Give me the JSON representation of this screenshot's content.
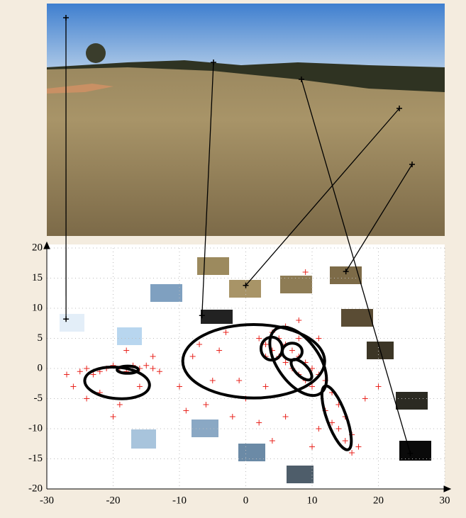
{
  "chart_data": {
    "type": "scatter",
    "xlim": [
      -30,
      30
    ],
    "ylim": [
      -20,
      20
    ],
    "xticks": [
      -30,
      -20,
      -10,
      0,
      10,
      20,
      30
    ],
    "yticks": [
      -20,
      -15,
      -10,
      -5,
      0,
      5,
      10,
      15,
      20
    ],
    "grid": true,
    "points": {
      "color": "#e8231d",
      "x": [
        -27,
        -25,
        -24,
        -23,
        -22,
        -21,
        -20,
        -19,
        -18,
        -17,
        -16,
        -15,
        -14,
        -13,
        -22,
        -19,
        -16,
        -24,
        -18,
        -14,
        -26,
        -20,
        -10,
        -8,
        -6,
        -4,
        -2,
        -5,
        -9,
        0,
        2,
        -3,
        -1,
        3,
        -7,
        2,
        3,
        4,
        5,
        6,
        7,
        8,
        9,
        10,
        11,
        5,
        6,
        7,
        8,
        9,
        10,
        4,
        6,
        8,
        3,
        12,
        13,
        14,
        15,
        14,
        15,
        16,
        17,
        12,
        13,
        11,
        10,
        16,
        9,
        8,
        11,
        18,
        20,
        6,
        4
      ],
      "y": [
        -1,
        -0.5,
        0,
        -1,
        -0.5,
        0,
        0.5,
        0,
        -0.5,
        0.5,
        0,
        0.5,
        0,
        -0.5,
        -4,
        -6,
        -3,
        -5,
        3,
        2,
        -3,
        -8,
        -3,
        2,
        -6,
        3,
        -8,
        -2,
        -7,
        -5,
        -9,
        6,
        -2,
        -3,
        4,
        5,
        4,
        3,
        5,
        4,
        3,
        2,
        1,
        0,
        -1,
        2,
        1,
        0,
        -1,
        -2,
        -3,
        6,
        7,
        5,
        2,
        -2,
        -4,
        -6,
        -8,
        -10,
        -12,
        -11,
        -13,
        -7,
        -9,
        -10,
        -13,
        -14,
        16,
        8,
        5,
        -5,
        -3,
        -8,
        -12
      ]
    },
    "highlights": {
      "color": "#000000",
      "x": [
        -27.1,
        -6.6,
        0,
        15.1,
        24.8
      ],
      "y": [
        8.2,
        8.8,
        13.8,
        16.1,
        -14.1
      ]
    },
    "ellipses": [
      {
        "cx": -19.4,
        "cy": -2.4,
        "rx": 4.9,
        "ry": 2.6,
        "angle": 5
      },
      {
        "cx": -17.8,
        "cy": -0.2,
        "rx": 1.6,
        "ry": 0.6,
        "angle": 0
      },
      {
        "cx": 1.2,
        "cy": 1.2,
        "rx": 10.7,
        "ry": 6.1,
        "angle": 0
      },
      {
        "cx": 7.9,
        "cy": 1.2,
        "rx": 5.9,
        "ry": 3.5,
        "angle": 55
      },
      {
        "cx": 3.9,
        "cy": 3.3,
        "rx": 1.6,
        "ry": 1.9,
        "angle": 0
      },
      {
        "cx": 7.0,
        "cy": 2.8,
        "rx": 1.5,
        "ry": 1.4,
        "angle": 0
      },
      {
        "cx": 8.4,
        "cy": -0.2,
        "rx": 2.0,
        "ry": 1.0,
        "angle": 45
      },
      {
        "cx": 13.7,
        "cy": -8.2,
        "rx": 5.1,
        "ry": 1.6,
        "angle": 70
      }
    ]
  }
}
